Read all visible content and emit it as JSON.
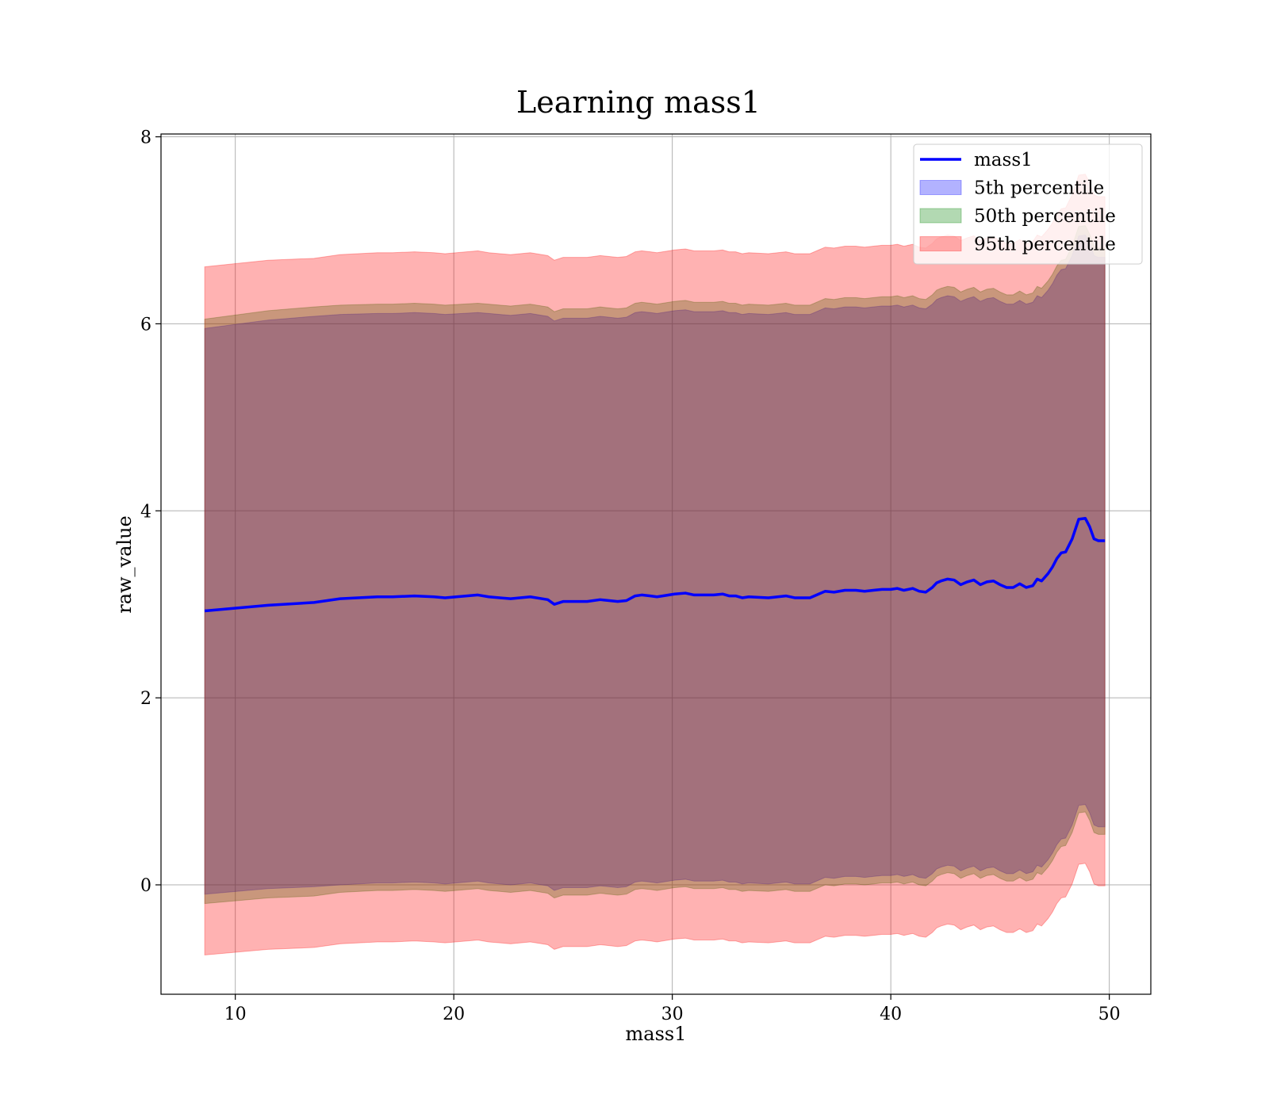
{
  "chart_data": {
    "type": "area",
    "title": "Learning mass1",
    "xlabel": "mass1",
    "ylabel": "raw_value",
    "xlim": [
      6.6,
      51.9
    ],
    "ylim": [
      -1.17,
      8.03
    ],
    "xticks": [
      10,
      20,
      30,
      40,
      50
    ],
    "yticks": [
      0,
      2,
      4,
      6,
      8
    ],
    "grid": true,
    "legend_position": "top-right",
    "x": [
      8.6,
      11.5,
      13.6,
      14.8,
      16.5,
      17.2,
      18.2,
      19.1,
      19.6,
      21.1,
      21.6,
      22.6,
      23.5,
      24.3,
      24.6,
      25.0,
      25.6,
      26.1,
      26.7,
      27.5,
      27.9,
      28.3,
      28.6,
      29.0,
      29.3,
      30.1,
      30.6,
      31.0,
      31.9,
      32.3,
      32.6,
      32.9,
      33.2,
      33.5,
      34.4,
      35.2,
      35.6,
      36.3,
      36.7,
      37.0,
      37.4,
      37.9,
      38.4,
      38.8,
      39.2,
      39.6,
      40.0,
      40.3,
      40.6,
      41.0,
      41.3,
      41.6,
      41.9,
      42.1,
      42.3,
      42.6,
      42.9,
      43.2,
      43.5,
      43.8,
      44.1,
      44.4,
      44.7,
      45.0,
      45.3,
      45.6,
      45.9,
      46.2,
      46.5,
      46.7,
      46.9,
      47.2,
      47.4,
      47.6,
      47.8,
      48.0,
      48.3,
      48.6,
      48.9,
      49.1,
      49.3,
      49.5,
      49.8
    ],
    "series": [
      {
        "name": "mass1",
        "kind": "line",
        "color": "#0000ff",
        "values": [
          2.93,
          2.99,
          3.02,
          3.06,
          3.08,
          3.08,
          3.09,
          3.08,
          3.07,
          3.1,
          3.08,
          3.06,
          3.08,
          3.05,
          3.0,
          3.03,
          3.03,
          3.03,
          3.05,
          3.03,
          3.04,
          3.09,
          3.1,
          3.09,
          3.08,
          3.11,
          3.12,
          3.1,
          3.1,
          3.11,
          3.09,
          3.09,
          3.07,
          3.08,
          3.07,
          3.09,
          3.07,
          3.07,
          3.11,
          3.14,
          3.13,
          3.15,
          3.15,
          3.14,
          3.15,
          3.16,
          3.16,
          3.17,
          3.15,
          3.17,
          3.14,
          3.13,
          3.18,
          3.23,
          3.25,
          3.27,
          3.26,
          3.21,
          3.24,
          3.26,
          3.21,
          3.24,
          3.25,
          3.21,
          3.18,
          3.18,
          3.22,
          3.18,
          3.2,
          3.27,
          3.25,
          3.33,
          3.4,
          3.49,
          3.55,
          3.56,
          3.7,
          3.91,
          3.92,
          3.83,
          3.7,
          3.68,
          3.68
        ]
      },
      {
        "name": "5th percentile",
        "kind": "band",
        "color": "#0000ff",
        "upper": [
          5.95,
          6.04,
          6.08,
          6.1,
          6.11,
          6.11,
          6.12,
          6.11,
          6.1,
          6.12,
          6.11,
          6.09,
          6.11,
          6.08,
          6.03,
          6.06,
          6.06,
          6.06,
          6.08,
          6.06,
          6.07,
          6.12,
          6.13,
          6.12,
          6.11,
          6.14,
          6.15,
          6.13,
          6.13,
          6.14,
          6.12,
          6.12,
          6.1,
          6.11,
          6.1,
          6.12,
          6.1,
          6.1,
          6.14,
          6.17,
          6.16,
          6.18,
          6.18,
          6.17,
          6.18,
          6.19,
          6.19,
          6.2,
          6.18,
          6.2,
          6.17,
          6.16,
          6.21,
          6.26,
          6.28,
          6.3,
          6.29,
          6.24,
          6.27,
          6.29,
          6.24,
          6.27,
          6.28,
          6.24,
          6.21,
          6.21,
          6.25,
          6.21,
          6.23,
          6.3,
          6.28,
          6.36,
          6.43,
          6.52,
          6.58,
          6.59,
          6.73,
          6.94,
          6.95,
          6.86,
          6.73,
          6.71,
          6.71
        ],
        "lower": [
          -0.1,
          -0.04,
          -0.02,
          0.0,
          0.02,
          0.02,
          0.03,
          0.02,
          0.01,
          0.04,
          0.02,
          0.0,
          0.02,
          -0.01,
          -0.06,
          -0.03,
          -0.03,
          -0.03,
          -0.01,
          -0.03,
          -0.02,
          0.03,
          0.04,
          0.03,
          0.02,
          0.05,
          0.06,
          0.04,
          0.04,
          0.05,
          0.03,
          0.03,
          0.01,
          0.02,
          0.01,
          0.03,
          0.01,
          0.01,
          0.05,
          0.08,
          0.07,
          0.09,
          0.09,
          0.08,
          0.09,
          0.1,
          0.1,
          0.11,
          0.09,
          0.11,
          0.08,
          0.07,
          0.12,
          0.17,
          0.19,
          0.21,
          0.2,
          0.15,
          0.18,
          0.2,
          0.15,
          0.18,
          0.19,
          0.15,
          0.12,
          0.12,
          0.16,
          0.12,
          0.14,
          0.21,
          0.19,
          0.27,
          0.34,
          0.43,
          0.49,
          0.5,
          0.64,
          0.85,
          0.86,
          0.77,
          0.64,
          0.62,
          0.62
        ]
      },
      {
        "name": "50th percentile",
        "kind": "band",
        "color": "#008000",
        "upper": [
          6.05,
          6.14,
          6.18,
          6.2,
          6.21,
          6.21,
          6.22,
          6.21,
          6.2,
          6.22,
          6.21,
          6.19,
          6.21,
          6.18,
          6.13,
          6.16,
          6.16,
          6.16,
          6.18,
          6.16,
          6.17,
          6.22,
          6.23,
          6.22,
          6.21,
          6.24,
          6.25,
          6.23,
          6.23,
          6.24,
          6.22,
          6.22,
          6.2,
          6.21,
          6.2,
          6.22,
          6.2,
          6.2,
          6.24,
          6.27,
          6.26,
          6.28,
          6.28,
          6.27,
          6.28,
          6.29,
          6.29,
          6.3,
          6.28,
          6.3,
          6.27,
          6.26,
          6.31,
          6.36,
          6.38,
          6.4,
          6.39,
          6.34,
          6.37,
          6.39,
          6.34,
          6.37,
          6.38,
          6.34,
          6.31,
          6.31,
          6.35,
          6.31,
          6.33,
          6.4,
          6.38,
          6.46,
          6.53,
          6.62,
          6.68,
          6.69,
          6.83,
          7.04,
          7.05,
          6.96,
          6.83,
          6.81,
          6.81
        ],
        "lower": [
          -0.2,
          -0.14,
          -0.12,
          -0.08,
          -0.06,
          -0.06,
          -0.05,
          -0.06,
          -0.07,
          -0.04,
          -0.06,
          -0.08,
          -0.06,
          -0.09,
          -0.14,
          -0.11,
          -0.11,
          -0.11,
          -0.09,
          -0.11,
          -0.1,
          -0.05,
          -0.04,
          -0.05,
          -0.06,
          -0.03,
          -0.02,
          -0.04,
          -0.04,
          -0.03,
          -0.05,
          -0.05,
          -0.07,
          -0.06,
          -0.07,
          -0.05,
          -0.07,
          -0.07,
          -0.03,
          0.0,
          -0.01,
          0.01,
          0.01,
          0.0,
          0.01,
          0.02,
          0.02,
          0.03,
          0.01,
          0.03,
          0.0,
          -0.01,
          0.04,
          0.09,
          0.11,
          0.13,
          0.12,
          0.07,
          0.1,
          0.12,
          0.07,
          0.1,
          0.11,
          0.07,
          0.04,
          0.04,
          0.08,
          0.04,
          0.06,
          0.13,
          0.11,
          0.19,
          0.26,
          0.35,
          0.41,
          0.42,
          0.56,
          0.77,
          0.78,
          0.69,
          0.56,
          0.54,
          0.54
        ]
      },
      {
        "name": "95th percentile",
        "kind": "band",
        "color": "#ff0000",
        "upper": [
          6.61,
          6.68,
          6.7,
          6.74,
          6.76,
          6.76,
          6.77,
          6.76,
          6.75,
          6.78,
          6.76,
          6.74,
          6.76,
          6.73,
          6.68,
          6.71,
          6.71,
          6.71,
          6.73,
          6.71,
          6.72,
          6.77,
          6.78,
          6.77,
          6.76,
          6.79,
          6.8,
          6.78,
          6.78,
          6.79,
          6.77,
          6.77,
          6.75,
          6.76,
          6.75,
          6.77,
          6.75,
          6.75,
          6.79,
          6.82,
          6.81,
          6.83,
          6.83,
          6.82,
          6.83,
          6.84,
          6.84,
          6.85,
          6.83,
          6.85,
          6.82,
          6.81,
          6.86,
          6.91,
          6.93,
          6.95,
          6.94,
          6.89,
          6.92,
          6.94,
          6.89,
          6.92,
          6.93,
          6.89,
          6.86,
          6.86,
          6.9,
          6.86,
          6.88,
          6.95,
          6.93,
          7.01,
          7.08,
          7.17,
          7.23,
          7.24,
          7.38,
          7.59,
          7.6,
          7.51,
          7.38,
          7.36,
          7.36
        ],
        "lower": [
          -0.75,
          -0.69,
          -0.67,
          -0.63,
          -0.61,
          -0.61,
          -0.6,
          -0.61,
          -0.62,
          -0.59,
          -0.61,
          -0.63,
          -0.61,
          -0.64,
          -0.69,
          -0.66,
          -0.66,
          -0.66,
          -0.64,
          -0.66,
          -0.65,
          -0.6,
          -0.59,
          -0.6,
          -0.61,
          -0.58,
          -0.57,
          -0.59,
          -0.59,
          -0.58,
          -0.6,
          -0.6,
          -0.62,
          -0.61,
          -0.62,
          -0.6,
          -0.62,
          -0.62,
          -0.58,
          -0.55,
          -0.56,
          -0.54,
          -0.54,
          -0.55,
          -0.54,
          -0.53,
          -0.53,
          -0.52,
          -0.54,
          -0.52,
          -0.55,
          -0.56,
          -0.51,
          -0.46,
          -0.44,
          -0.42,
          -0.43,
          -0.48,
          -0.45,
          -0.43,
          -0.48,
          -0.45,
          -0.44,
          -0.48,
          -0.51,
          -0.51,
          -0.47,
          -0.51,
          -0.49,
          -0.42,
          -0.44,
          -0.36,
          -0.29,
          -0.2,
          -0.14,
          -0.13,
          0.01,
          0.22,
          0.23,
          0.14,
          0.01,
          -0.01,
          -0.01
        ]
      }
    ]
  }
}
